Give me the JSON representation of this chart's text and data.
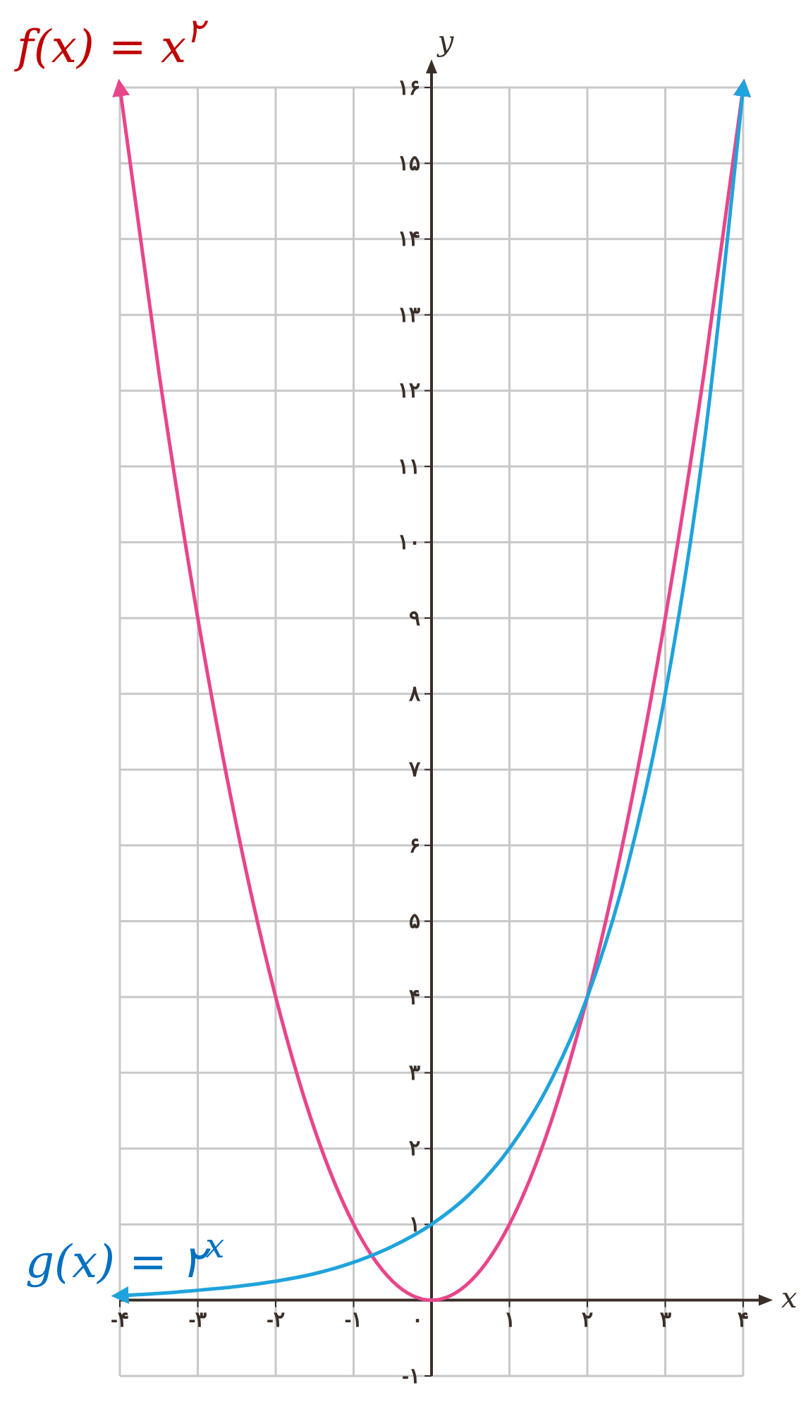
{
  "chart_data": {
    "type": "line",
    "x": [
      -4,
      -3.5,
      -3,
      -2.5,
      -2,
      -1.5,
      -1,
      -0.5,
      0,
      0.5,
      1,
      1.5,
      2,
      2.5,
      3,
      3.5,
      4
    ],
    "series": [
      {
        "name": "f(x) = x$^{۲}$",
        "color": "#e8458b",
        "values": [
          16,
          12.25,
          9,
          6.25,
          4,
          2.25,
          1,
          0.25,
          0,
          0.25,
          1,
          2.25,
          4,
          6.25,
          9,
          12.25,
          16
        ]
      },
      {
        "name": "g(x) = ۲$^{x}$",
        "color": "#1fa3dc",
        "values": [
          0.06,
          0.09,
          0.13,
          0.18,
          0.25,
          0.35,
          0.5,
          0.71,
          1,
          1.41,
          2,
          2.83,
          4,
          5.66,
          8,
          11.31,
          16
        ]
      }
    ],
    "xlabel": "x",
    "ylabel": "y",
    "xlim": [
      -4,
      4
    ],
    "ylim": [
      -1,
      16
    ],
    "xticks": [
      {
        "value": -4,
        "label": "-۴"
      },
      {
        "value": -3,
        "label": "-۳"
      },
      {
        "value": -2,
        "label": "-۲"
      },
      {
        "value": -1,
        "label": "-۱"
      },
      {
        "value": 0,
        "label": "۰"
      },
      {
        "value": 1,
        "label": "۱"
      },
      {
        "value": 2,
        "label": "۲"
      },
      {
        "value": 3,
        "label": "۳"
      },
      {
        "value": 4,
        "label": "۴"
      }
    ],
    "yticks": [
      {
        "value": -1,
        "label": "-۱"
      },
      {
        "value": 1,
        "label": "۱"
      },
      {
        "value": 2,
        "label": "۲"
      },
      {
        "value": 3,
        "label": "۳"
      },
      {
        "value": 4,
        "label": "۴"
      },
      {
        "value": 5,
        "label": "۵"
      },
      {
        "value": 6,
        "label": "۶"
      },
      {
        "value": 7,
        "label": "۷"
      },
      {
        "value": 8,
        "label": "۸"
      },
      {
        "value": 9,
        "label": "۹"
      },
      {
        "value": 10,
        "label": "۱۰"
      },
      {
        "value": 11,
        "label": "۱۱"
      },
      {
        "value": 12,
        "label": "۱۲"
      },
      {
        "value": 13,
        "label": "۱۳"
      },
      {
        "value": 14,
        "label": "۱۴"
      },
      {
        "value": 15,
        "label": "۱۵"
      },
      {
        "value": 16,
        "label": "۱۶"
      }
    ],
    "grid": true,
    "legend": false,
    "marker": "none",
    "line_style": "solid"
  }
}
